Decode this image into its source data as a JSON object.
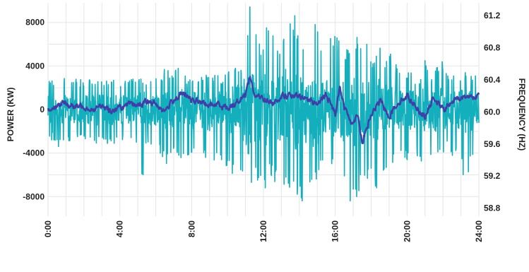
{
  "chart_data": {
    "type": "line",
    "title": "",
    "xlabel": "",
    "ylabel_left": "POWER (KW)",
    "ylabel_right": "FREQUENCY (HZ)",
    "grid": true,
    "x_ticks": [
      "0:00",
      "4:00",
      "8:00",
      "12:00",
      "16:00",
      "20:00",
      "24:00"
    ],
    "y_left_ticks": [
      "8000",
      "4000",
      "0",
      "-4000",
      "-8000"
    ],
    "y_right_ticks": [
      "61.2",
      "60.8",
      "60.4",
      "60.0",
      "59.6",
      "59.2",
      "58.8"
    ],
    "xlim_hours": [
      0,
      24
    ],
    "ylim_left": [
      -9800,
      9800
    ],
    "ylim_right": [
      58.7,
      61.36
    ],
    "series": [
      {
        "axis": "left",
        "color": "#13AFBD",
        "x_hours": [
          0,
          0.25,
          0.5,
          0.75,
          1,
          1.25,
          1.5,
          1.75,
          2,
          2.25,
          2.5,
          2.75,
          3,
          3.25,
          3.5,
          3.75,
          4,
          4.25,
          4.5,
          4.75,
          5,
          5.25,
          5.5,
          5.75,
          6,
          6.25,
          6.5,
          6.75,
          7,
          7.25,
          7.5,
          7.75,
          8,
          8.25,
          8.5,
          8.75,
          9,
          9.25,
          9.5,
          9.75,
          10,
          10.25,
          10.5,
          10.75,
          11,
          11.25,
          11.5,
          11.75,
          12,
          12.25,
          12.5,
          12.75,
          13,
          13.25,
          13.5,
          13.75,
          14,
          14.25,
          14.5,
          14.75,
          15,
          15.25,
          15.5,
          15.75,
          16,
          16.25,
          16.5,
          16.75,
          17,
          17.25,
          17.5,
          17.75,
          18,
          18.25,
          18.5,
          18.75,
          19,
          19.25,
          19.5,
          19.75,
          20,
          20.25,
          20.5,
          20.75,
          21,
          21.25,
          21.5,
          21.75,
          22,
          22.25,
          22.5,
          22.75,
          23,
          23.25,
          23.5,
          23.75,
          24
        ],
        "y_high": [
          2500,
          2800,
          2200,
          2600,
          3000,
          2400,
          3000,
          2800,
          2600,
          3200,
          2800,
          3000,
          3100,
          2700,
          3300,
          3000,
          2500,
          3100,
          2900,
          3000,
          3400,
          2800,
          2600,
          3000,
          3300,
          3100,
          3800,
          3700,
          3000,
          4400,
          3800,
          2600,
          3400,
          3000,
          2800,
          3500,
          3200,
          3300,
          3400,
          2800,
          4000,
          3600,
          4200,
          3800,
          6600,
          9600,
          8200,
          6200,
          6400,
          9600,
          7400,
          6600,
          6800,
          9500,
          8000,
          8800,
          7600,
          6600,
          5800,
          8400,
          9400,
          5800,
          6400,
          7400,
          7200,
          6600,
          5800,
          5600,
          7000,
          7200,
          5800,
          6600,
          4400,
          5200,
          6400,
          4400,
          5400,
          4800,
          3800,
          4800,
          3200,
          3800,
          2800,
          3000,
          4800,
          3200,
          3600,
          4200,
          4600,
          3200,
          2800,
          3800,
          3000,
          3400,
          3400,
          3000,
          3800
        ],
        "y_low": [
          -3200,
          -2800,
          -3600,
          -3400,
          -3000,
          -3200,
          -3000,
          -2600,
          -3000,
          -2800,
          -3200,
          -3400,
          -2800,
          -3000,
          -3600,
          -3000,
          -3200,
          -2800,
          -3000,
          -3400,
          -3200,
          -8200,
          -3000,
          -3600,
          -3200,
          -4200,
          -5200,
          -4800,
          -3600,
          -4400,
          -4600,
          -4800,
          -5000,
          -3800,
          -4800,
          -5000,
          -5600,
          -4800,
          -5000,
          -5800,
          -5000,
          -6000,
          -6800,
          -5800,
          -9500,
          -9600,
          -7200,
          -6600,
          -8400,
          -5600,
          -6200,
          -7200,
          -6200,
          -7600,
          -7400,
          -8000,
          -9500,
          -8200,
          -6600,
          -7200,
          -6200,
          -6200,
          -5800,
          -5600,
          -6400,
          -5400,
          -7800,
          -9000,
          -9500,
          -8400,
          -7600,
          -7200,
          -6400,
          -7400,
          -6600,
          -5800,
          -4600,
          -5200,
          -4400,
          -4200,
          -5000,
          -4600,
          -4400,
          -4600,
          -5400,
          -4200,
          -5400,
          -4200,
          -4800,
          -3600,
          -4800,
          -4200,
          -5000,
          -7400,
          -5200,
          -4200,
          -3400
        ]
      },
      {
        "axis": "right",
        "color": "#3E40A8",
        "x_hours": [
          0,
          0.5,
          1,
          1.5,
          2,
          2.5,
          3,
          3.5,
          4,
          4.5,
          5,
          5.5,
          6,
          6.5,
          7,
          7.5,
          8,
          8.5,
          9,
          9.5,
          10,
          10.5,
          11,
          11.25,
          11.5,
          12,
          12.5,
          13,
          13.5,
          14,
          14.5,
          15,
          15.5,
          16,
          16.25,
          16.5,
          17,
          17.25,
          17.5,
          18,
          18.5,
          19,
          19.5,
          20,
          20.5,
          21,
          21.5,
          22,
          22.5,
          23,
          23.5,
          24
        ],
        "y": [
          60.02,
          60.09,
          60.11,
          60.06,
          60.08,
          60.03,
          60.07,
          60.02,
          60.05,
          60.08,
          60.09,
          60.12,
          60.1,
          60.01,
          60.16,
          60.23,
          60.14,
          60.12,
          60.08,
          60.1,
          60.05,
          60.12,
          60.22,
          60.46,
          60.2,
          60.17,
          60.1,
          60.21,
          60.2,
          60.18,
          60.16,
          60.1,
          60.21,
          59.98,
          60.34,
          60.05,
          59.85,
          60.0,
          59.62,
          59.96,
          60.14,
          59.95,
          60.12,
          60.2,
          60.07,
          59.94,
          60.18,
          60.02,
          60.12,
          60.18,
          60.2,
          60.2
        ]
      }
    ]
  }
}
